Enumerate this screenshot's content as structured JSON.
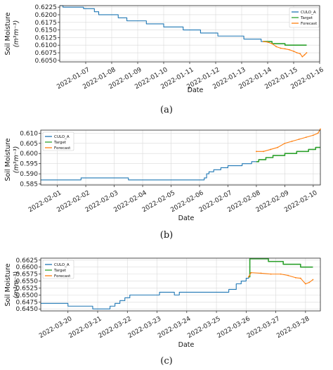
{
  "panels": [
    {
      "caption": "(a)",
      "chart_data": {
        "type": "line",
        "xlabel": "Date",
        "ylabel_line1": "Soil Moisture",
        "ylabel_line2": "(m³m⁻³)",
        "xlim": [
          "2022-01-06",
          "2022-01-16"
        ],
        "ylim": [
          0.6045,
          0.623
        ],
        "x_ticks": [
          "2022-01-07",
          "2022-01-08",
          "2022-01-09",
          "2022-01-10",
          "2022-01-11",
          "2022-01-12",
          "2022-01-13",
          "2022-01-14",
          "2022-01-15",
          "2022-01-16"
        ],
        "y_ticks": [
          0.605,
          0.6075,
          0.61,
          0.6125,
          0.615,
          0.6175,
          0.62,
          0.6225
        ],
        "y_tick_labels": [
          "0.6050",
          "0.6075",
          "0.6100",
          "0.6125",
          "0.6150",
          "0.6175",
          "0.6200",
          "0.6225"
        ],
        "grid": true,
        "legend": "upper-right",
        "series": [
          {
            "name": "CULO_A",
            "color": "#1f77b4",
            "step": true,
            "points": [
              [
                "2022-01-06 00:00",
                0.623
              ],
              [
                "2022-01-06 03:00",
                0.6225
              ],
              [
                "2022-01-06 22:00",
                0.622
              ],
              [
                "2022-01-07 08:00",
                0.621
              ],
              [
                "2022-01-07 12:00",
                0.62
              ],
              [
                "2022-01-08 06:00",
                0.619
              ],
              [
                "2022-01-08 14:00",
                0.618
              ],
              [
                "2022-01-09 08:00",
                0.617
              ],
              [
                "2022-01-10 00:00",
                0.616
              ],
              [
                "2022-01-10 18:00",
                0.615
              ],
              [
                "2022-01-11 10:00",
                0.614
              ],
              [
                "2022-01-12 02:00",
                0.613
              ],
              [
                "2022-01-13 02:00",
                0.612
              ],
              [
                "2022-01-13 18:00",
                0.6112
              ],
              [
                "2022-01-13 20:00",
                0.6112
              ]
            ]
          },
          {
            "name": "Target",
            "color": "#2ca02c",
            "step": true,
            "points": [
              [
                "2022-01-13 20:00",
                0.6112
              ],
              [
                "2022-01-14 04:00",
                0.6105
              ],
              [
                "2022-01-14 16:00",
                0.61
              ],
              [
                "2022-01-15 12:00",
                0.61
              ]
            ]
          },
          {
            "name": "Forecast",
            "color": "#ff7f0e",
            "step": false,
            "points": [
              [
                "2022-01-13 20:00",
                0.6112
              ],
              [
                "2022-01-14 00:00",
                0.611
              ],
              [
                "2022-01-14 04:00",
                0.6105
              ],
              [
                "2022-01-14 08:00",
                0.6095
              ],
              [
                "2022-01-14 12:00",
                0.609
              ],
              [
                "2022-01-14 16:00",
                0.6088
              ],
              [
                "2022-01-14 20:00",
                0.6085
              ],
              [
                "2022-01-15 00:00",
                0.608
              ],
              [
                "2022-01-15 03:00",
                0.6075
              ],
              [
                "2022-01-15 06:00",
                0.6072
              ],
              [
                "2022-01-15 08:00",
                0.6062
              ],
              [
                "2022-01-15 10:00",
                0.6068
              ],
              [
                "2022-01-15 12:00",
                0.6075
              ]
            ]
          }
        ]
      }
    },
    {
      "caption": "(b)",
      "chart_data": {
        "type": "line",
        "xlabel": "Date",
        "ylabel_line1": "Soil Moisture",
        "ylabel_line2": "(m³m⁻³)",
        "xlim": [
          "2022-01-31 10:00",
          "2022-02-10 06:00"
        ],
        "ylim": [
          0.5845,
          0.6115
        ],
        "x_ticks": [
          "2022-02-01",
          "2022-02-02",
          "2022-02-03",
          "2022-02-04",
          "2022-02-05",
          "2022-02-06",
          "2022-02-07",
          "2022-02-08",
          "2022-02-09",
          "2022-02-10"
        ],
        "y_ticks": [
          0.585,
          0.59,
          0.595,
          0.6,
          0.605,
          0.61
        ],
        "y_tick_labels": [
          "0.585",
          "0.590",
          "0.595",
          "0.600",
          "0.605",
          "0.610"
        ],
        "grid": true,
        "legend": "upper-left",
        "series": [
          {
            "name": "CULO_A",
            "color": "#1f77b4",
            "step": true,
            "points": [
              [
                "2022-01-31 10:00",
                0.587
              ],
              [
                "2022-02-01 20:00",
                0.588
              ],
              [
                "2022-02-03 12:00",
                0.587
              ],
              [
                "2022-02-06 04:00",
                0.588
              ],
              [
                "2022-02-06 06:00",
                0.59
              ],
              [
                "2022-02-06 08:00",
                0.591
              ],
              [
                "2022-02-06 12:00",
                0.592
              ],
              [
                "2022-02-06 18:00",
                0.593
              ],
              [
                "2022-02-07 00:00",
                0.594
              ],
              [
                "2022-02-07 12:00",
                0.595
              ],
              [
                "2022-02-07 20:00",
                0.596
              ],
              [
                "2022-02-08 00:00",
                0.596
              ]
            ]
          },
          {
            "name": "Target",
            "color": "#2ca02c",
            "step": true,
            "points": [
              [
                "2022-02-08 00:00",
                0.596
              ],
              [
                "2022-02-08 02:00",
                0.597
              ],
              [
                "2022-02-08 08:00",
                0.598
              ],
              [
                "2022-02-08 14:00",
                0.599
              ],
              [
                "2022-02-09 00:00",
                0.6
              ],
              [
                "2022-02-09 10:00",
                0.601
              ],
              [
                "2022-02-09 20:00",
                0.602
              ],
              [
                "2022-02-10 02:00",
                0.603
              ],
              [
                "2022-02-10 06:00",
                0.603
              ]
            ]
          },
          {
            "name": "Forecast",
            "color": "#ff7f0e",
            "step": false,
            "points": [
              [
                "2022-02-08 00:00",
                0.601
              ],
              [
                "2022-02-08 06:00",
                0.601
              ],
              [
                "2022-02-08 12:00",
                0.602
              ],
              [
                "2022-02-08 18:00",
                0.603
              ],
              [
                "2022-02-09 00:00",
                0.605
              ],
              [
                "2022-02-09 06:00",
                0.606
              ],
              [
                "2022-02-09 12:00",
                0.607
              ],
              [
                "2022-02-09 18:00",
                0.608
              ],
              [
                "2022-02-10 00:00",
                0.609
              ],
              [
                "2022-02-10 04:00",
                0.61
              ],
              [
                "2022-02-10 06:00",
                0.612
              ]
            ]
          }
        ]
      }
    },
    {
      "caption": "(c)",
      "chart_data": {
        "type": "line",
        "xlabel": "Date",
        "ylabel_line1": "Soil Moisture",
        "ylabel_line2": "(m³m⁻³)",
        "xlim": [
          "2022-03-19 02:00",
          "2022-03-28 12:00"
        ],
        "ylim": [
          0.6443,
          0.6632
        ],
        "x_ticks": [
          "2022-03-20",
          "2022-03-21",
          "2022-03-22",
          "2022-03-23",
          "2022-03-24",
          "2022-03-25",
          "2022-03-26",
          "2022-03-27",
          "2022-03-28"
        ],
        "y_ticks": [
          0.645,
          0.6475,
          0.65,
          0.6525,
          0.655,
          0.6575,
          0.66,
          0.6625
        ],
        "y_tick_labels": [
          "0.6450",
          "0.6475",
          "0.6500",
          "0.6525",
          "0.6550",
          "0.6575",
          "0.6600",
          "0.6625"
        ],
        "grid": true,
        "legend": "upper-left",
        "series": [
          {
            "name": "CULO_A",
            "color": "#1f77b4",
            "step": true,
            "points": [
              [
                "2022-03-19 02:00",
                0.647
              ],
              [
                "2022-03-20 00:00",
                0.646
              ],
              [
                "2022-03-20 20:00",
                0.645
              ],
              [
                "2022-03-21 10:00",
                0.646
              ],
              [
                "2022-03-21 14:00",
                0.647
              ],
              [
                "2022-03-21 18:00",
                0.648
              ],
              [
                "2022-03-21 22:00",
                0.649
              ],
              [
                "2022-03-22 02:00",
                0.65
              ],
              [
                "2022-03-23 02:00",
                0.651
              ],
              [
                "2022-03-23 14:00",
                0.65
              ],
              [
                "2022-03-23 18:00",
                0.651
              ],
              [
                "2022-03-25 10:00",
                0.652
              ],
              [
                "2022-03-25 16:00",
                0.654
              ],
              [
                "2022-03-25 20:00",
                0.655
              ],
              [
                "2022-03-26 00:00",
                0.656
              ],
              [
                "2022-03-26 02:00",
                0.6565
              ]
            ]
          },
          {
            "name": "Target",
            "color": "#2ca02c",
            "step": true,
            "points": [
              [
                "2022-03-26 02:00",
                0.6565
              ],
              [
                "2022-03-26 03:00",
                0.663
              ],
              [
                "2022-03-26 18:00",
                0.662
              ],
              [
                "2022-03-27 06:00",
                0.661
              ],
              [
                "2022-03-27 20:00",
                0.66
              ],
              [
                "2022-03-28 06:00",
                0.66
              ]
            ]
          },
          {
            "name": "Forecast",
            "color": "#ff7f0e",
            "step": false,
            "points": [
              [
                "2022-03-26 02:00",
                0.6565
              ],
              [
                "2022-03-26 04:00",
                0.658
              ],
              [
                "2022-03-26 12:00",
                0.6578
              ],
              [
                "2022-03-26 20:00",
                0.6575
              ],
              [
                "2022-03-27 04:00",
                0.6575
              ],
              [
                "2022-03-27 10:00",
                0.657
              ],
              [
                "2022-03-27 16:00",
                0.6562
              ],
              [
                "2022-03-27 20:00",
                0.656
              ],
              [
                "2022-03-28 00:00",
                0.654
              ],
              [
                "2022-03-28 03:00",
                0.6545
              ],
              [
                "2022-03-28 06:00",
                0.6555
              ]
            ]
          }
        ]
      }
    }
  ]
}
